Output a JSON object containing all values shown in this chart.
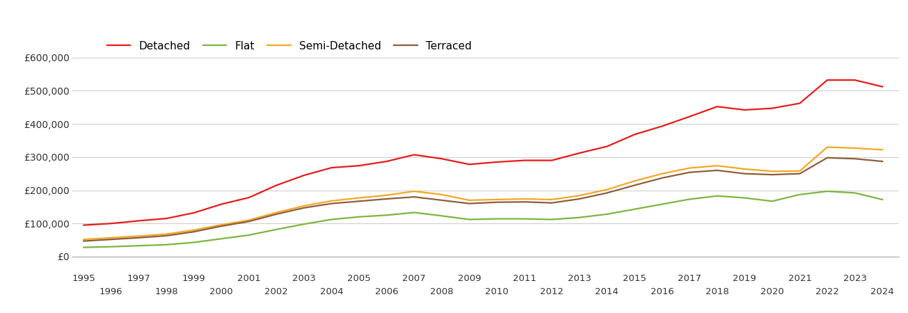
{
  "years": [
    1995,
    1996,
    1997,
    1998,
    1999,
    2000,
    2001,
    2002,
    2003,
    2004,
    2005,
    2006,
    2007,
    2008,
    2009,
    2010,
    2011,
    2012,
    2013,
    2014,
    2015,
    2016,
    2017,
    2018,
    2019,
    2020,
    2021,
    2022,
    2023,
    2024
  ],
  "detached": [
    95000,
    100000,
    108000,
    115000,
    132000,
    158000,
    178000,
    215000,
    245000,
    268000,
    274000,
    287000,
    307000,
    295000,
    278000,
    285000,
    290000,
    290000,
    312000,
    332000,
    368000,
    393000,
    422000,
    452000,
    442000,
    447000,
    462000,
    532000,
    532000,
    512000
  ],
  "flat": [
    28000,
    30000,
    33000,
    36000,
    43000,
    54000,
    65000,
    82000,
    98000,
    112000,
    120000,
    125000,
    133000,
    123000,
    112000,
    114000,
    114000,
    112000,
    118000,
    128000,
    143000,
    158000,
    173000,
    183000,
    177000,
    167000,
    187000,
    197000,
    192000,
    172000
  ],
  "semi_detached": [
    52000,
    57000,
    62000,
    68000,
    80000,
    96000,
    110000,
    133000,
    153000,
    168000,
    177000,
    185000,
    197000,
    187000,
    170000,
    172000,
    174000,
    172000,
    184000,
    202000,
    228000,
    250000,
    267000,
    274000,
    264000,
    257000,
    258000,
    330000,
    327000,
    322000
  ],
  "terraced": [
    47000,
    52000,
    57000,
    63000,
    75000,
    92000,
    106000,
    128000,
    147000,
    160000,
    167000,
    174000,
    180000,
    170000,
    160000,
    164000,
    165000,
    162000,
    174000,
    192000,
    215000,
    237000,
    254000,
    260000,
    250000,
    247000,
    250000,
    298000,
    295000,
    287000
  ],
  "colors": {
    "detached": "#e8191a",
    "flat": "#7cb53e",
    "semi_detached": "#f5a623",
    "terraced": "#8b5e3c"
  },
  "ylim": [
    0,
    660000
  ],
  "yticks": [
    0,
    100000,
    200000,
    300000,
    400000,
    500000,
    600000
  ],
  "ytick_labels": [
    "£0",
    "£100,000",
    "£200,000",
    "£300,000",
    "£400,000",
    "£500,000",
    "£600,000"
  ],
  "legend_labels": [
    "Detached",
    "Flat",
    "Semi-Detached",
    "Terraced"
  ],
  "background_color": "#ffffff",
  "grid_color": "#d0d0d0",
  "line_width": 1.6,
  "xlim_left": 1994.6,
  "xlim_right": 2024.6
}
